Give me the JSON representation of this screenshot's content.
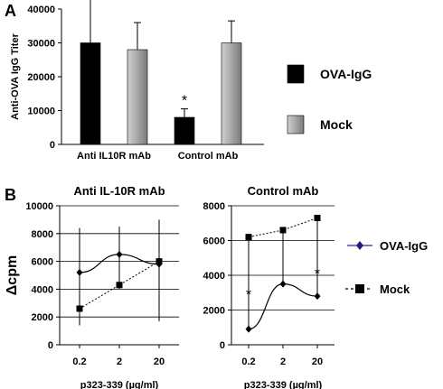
{
  "chart_data": [
    {
      "panel": "A",
      "type": "bar",
      "ylabel": "Anti-OVA IgG Titer",
      "yticks": [
        "0",
        "10000",
        "20000",
        "30000",
        "40000"
      ],
      "ylim": [
        0,
        40000
      ],
      "categories": [
        "Anti IL10R mAb",
        "Control mAb"
      ],
      "series": [
        {
          "name": "OVA-IgG",
          "color": "#000000",
          "values": [
            30000,
            8000
          ],
          "errors": [
            13500,
            2500
          ]
        },
        {
          "name": "Mock",
          "color": "#a6a6a6",
          "values": [
            28000,
            30000
          ],
          "errors": [
            8000,
            6500
          ]
        }
      ],
      "annotations": [
        {
          "text": "*",
          "category": "Control mAb",
          "series": "OVA-IgG"
        }
      ],
      "grid": false,
      "legend": "right"
    },
    {
      "panel": "B",
      "type": "line",
      "title": "Anti IL-10R mAb",
      "xlabel": "p323-339 (µg/ml)",
      "ylabel": "Δcpm",
      "x": [
        "0.2",
        "2",
        "20"
      ],
      "yticks": [
        "0",
        "2000",
        "4000",
        "6000",
        "8000",
        "10000"
      ],
      "ylim": [
        0,
        10000
      ],
      "series": [
        {
          "name": "OVA-IgG",
          "values": [
            5200,
            6500,
            5800
          ],
          "error_low": [
            1700,
            4000,
            1700
          ],
          "error_high": [
            8400,
            8500,
            9000
          ]
        },
        {
          "name": "Mock",
          "values": [
            2600,
            4300,
            6000
          ],
          "error_low": [
            1400,
            4300,
            5000
          ],
          "error_high": [
            2600,
            4300,
            6000
          ]
        }
      ],
      "grid": true
    },
    {
      "panel": "B",
      "type": "line",
      "title": "Control mAb",
      "xlabel": "p323-339 (µg/ml)",
      "x": [
        "0.2",
        "2",
        "20"
      ],
      "yticks": [
        "0",
        "2000",
        "4000",
        "6000",
        "8000"
      ],
      "ylim": [
        0,
        8000
      ],
      "series": [
        {
          "name": "OVA-IgG",
          "values": [
            900,
            3500,
            2800
          ],
          "error_low": [
            900,
            3500,
            2800
          ],
          "error_high": [
            2200,
            4500,
            3400
          ]
        },
        {
          "name": "Mock",
          "values": [
            6200,
            6600,
            7300
          ],
          "error_low": [
            2100,
            4200,
            2800
          ],
          "error_high": [
            6200,
            6600,
            7300
          ]
        }
      ],
      "annotations": [
        {
          "text": "*",
          "x": "0.2"
        },
        {
          "text": "*",
          "x": "20"
        }
      ],
      "grid": true,
      "legend": "right"
    }
  ],
  "labels": {
    "panel_a": "A",
    "panel_b": "B"
  }
}
